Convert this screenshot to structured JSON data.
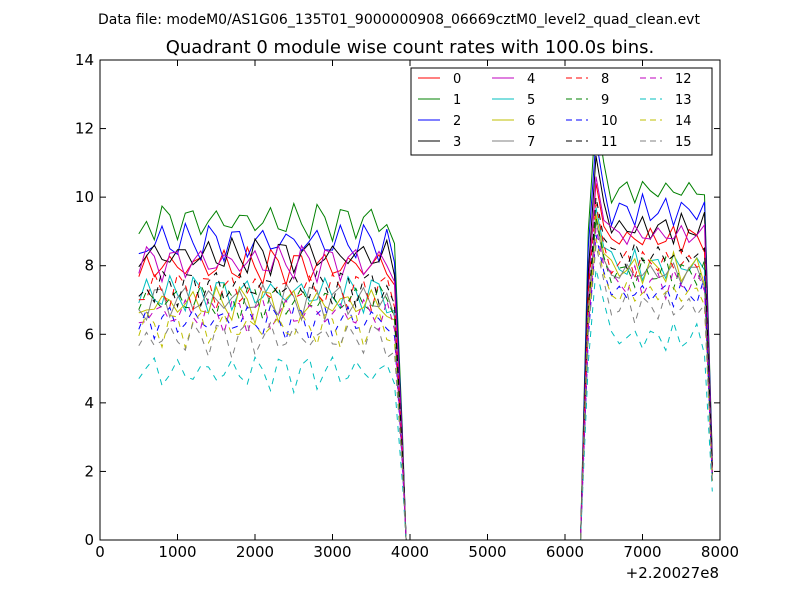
{
  "suptitle": "Data file: modeM0/AS1G06_135T01_9000000908_06669cztM0_level2_quad_clean.evt",
  "chart_data": {
    "type": "line",
    "title": "Quadrant 0 module wise count rates with 100.0s bins.",
    "xlabel": "",
    "ylabel": "",
    "xlim": [
      0,
      8000
    ],
    "ylim": [
      0,
      14
    ],
    "x_ticks": [
      0,
      1000,
      2000,
      3000,
      4000,
      5000,
      6000,
      7000,
      8000
    ],
    "x_tick_labels": [
      "0",
      "1000",
      "2000",
      "3000",
      "4000",
      "5000",
      "6000",
      "7000",
      "8000"
    ],
    "y_ticks": [
      0,
      2,
      4,
      6,
      8,
      10,
      12,
      14
    ],
    "y_tick_labels": [
      "0",
      "2",
      "4",
      "6",
      "8",
      "10",
      "12",
      "14"
    ],
    "x_offset_label": "+2.20027e8",
    "legend_position": "top-right",
    "legend_columns": 4,
    "segment_a_x": [
      500,
      600,
      700,
      800,
      900,
      1000,
      1100,
      1200,
      1300,
      1400,
      1500,
      1600,
      1700,
      1800,
      1900,
      2000,
      2100,
      2200,
      2300,
      2400,
      2500,
      2600,
      2700,
      2800,
      2900,
      3000,
      3100,
      3200,
      3300,
      3400,
      3500,
      3600,
      3700,
      3800,
      3900
    ],
    "segment_b_x": [
      6200,
      6300,
      6400,
      6500,
      6600,
      6700,
      6800,
      6900,
      7000,
      7100,
      7200,
      7300,
      7400,
      7500,
      7600,
      7700,
      7800,
      7900
    ],
    "series": [
      {
        "name": "0",
        "color": "#ff0000",
        "dash": "solid",
        "level_a": 8.0,
        "level_b": 8.8,
        "peak": 10.4
      },
      {
        "name": "1",
        "color": "#008000",
        "dash": "solid",
        "level_a": 9.3,
        "level_b": 10.2,
        "peak": 12.5
      },
      {
        "name": "2",
        "color": "#0000ff",
        "dash": "solid",
        "level_a": 8.7,
        "level_b": 9.6,
        "peak": 11.7
      },
      {
        "name": "3",
        "color": "#000000",
        "dash": "solid",
        "level_a": 8.3,
        "level_b": 9.1,
        "peak": 11.2
      },
      {
        "name": "4",
        "color": "#bf00bf",
        "dash": "solid",
        "level_a": 8.1,
        "level_b": 8.9,
        "peak": 10.6
      },
      {
        "name": "5",
        "color": "#00bfbf",
        "dash": "solid",
        "level_a": 7.2,
        "level_b": 8.0,
        "peak": 9.7
      },
      {
        "name": "6",
        "color": "#bfbf00",
        "dash": "solid",
        "level_a": 6.9,
        "level_b": 7.9,
        "peak": 9.5
      },
      {
        "name": "7",
        "color": "#808080",
        "dash": "solid",
        "level_a": 7.0,
        "level_b": 7.8,
        "peak": 9.3
      },
      {
        "name": "8",
        "color": "#ff0000",
        "dash": "dashed",
        "level_a": 7.3,
        "level_b": 8.1,
        "peak": 9.8
      },
      {
        "name": "9",
        "color": "#008000",
        "dash": "dashed",
        "level_a": 7.0,
        "level_b": 7.8,
        "peak": 9.4
      },
      {
        "name": "10",
        "color": "#0000ff",
        "dash": "dashed",
        "level_a": 6.4,
        "level_b": 7.2,
        "peak": 8.9
      },
      {
        "name": "11",
        "color": "#000000",
        "dash": "dashed",
        "level_a": 7.4,
        "level_b": 8.3,
        "peak": 10.0
      },
      {
        "name": "12",
        "color": "#bf00bf",
        "dash": "dashed",
        "level_a": 6.6,
        "level_b": 7.5,
        "peak": 9.1
      },
      {
        "name": "13",
        "color": "#00bfbf",
        "dash": "dashed",
        "level_a": 4.9,
        "level_b": 5.9,
        "peak": 7.9
      },
      {
        "name": "14",
        "color": "#bfbf00",
        "dash": "dashed",
        "level_a": 6.2,
        "level_b": 7.2,
        "peak": 8.8
      },
      {
        "name": "15",
        "color": "#808080",
        "dash": "dashed",
        "level_a": 5.9,
        "level_b": 6.8,
        "peak": 8.6
      }
    ]
  }
}
